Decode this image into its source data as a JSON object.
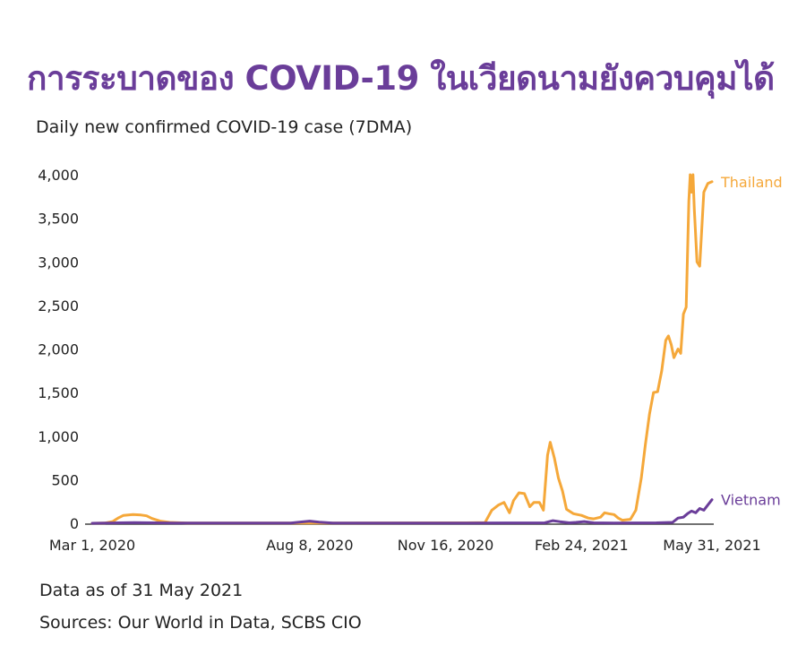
{
  "header": {
    "title": "การระบาดของ COVID-19 ในเวียดนามยังควบคุมได้",
    "subtitle": "Daily new confirmed COVID-19 case (7DMA)"
  },
  "footer": {
    "data_note": "Data as of 31 May 2021",
    "sources": "Sources: Our World in Data, SCBS CIO"
  },
  "chart_data": {
    "type": "line",
    "ylim": [
      0,
      4000
    ],
    "y_ticks": [
      0,
      500,
      1000,
      1500,
      2000,
      2500,
      3000,
      3500,
      4000
    ],
    "y_tick_labels": [
      "0",
      "500",
      "1,000",
      "1,500",
      "2,000",
      "2,500",
      "3,000",
      "3,500",
      "4,000"
    ],
    "x_start": "2020-03-01",
    "x_end": "2021-05-31",
    "x_tick_labels": [
      {
        "date": "2020-03-01",
        "label": "Mar 1, 2020"
      },
      {
        "date": "2020-08-08",
        "label": "Aug 8, 2020"
      },
      {
        "date": "2020-11-16",
        "label": "Nov 16, 2020"
      },
      {
        "date": "2021-02-24",
        "label": "Feb 24, 2021"
      },
      {
        "date": "2021-05-31",
        "label": "May 31, 2021"
      }
    ],
    "grid": false,
    "legend": "labels at line ends",
    "series": [
      {
        "name": "Thailand",
        "color": "#f5a83a",
        "points": [
          [
            "2020-03-01",
            0
          ],
          [
            "2020-03-10",
            2
          ],
          [
            "2020-03-16",
            20
          ],
          [
            "2020-03-20",
            60
          ],
          [
            "2020-03-24",
            90
          ],
          [
            "2020-03-31",
            100
          ],
          [
            "2020-04-06",
            95
          ],
          [
            "2020-04-10",
            85
          ],
          [
            "2020-04-14",
            55
          ],
          [
            "2020-04-20",
            25
          ],
          [
            "2020-04-27",
            10
          ],
          [
            "2020-05-10",
            3
          ],
          [
            "2020-06-01",
            2
          ],
          [
            "2020-09-01",
            3
          ],
          [
            "2020-12-01",
            5
          ],
          [
            "2020-12-15",
            8
          ],
          [
            "2020-12-20",
            150
          ],
          [
            "2020-12-25",
            210
          ],
          [
            "2020-12-29",
            240
          ],
          [
            "2021-01-02",
            120
          ],
          [
            "2021-01-05",
            260
          ],
          [
            "2021-01-09",
            350
          ],
          [
            "2021-01-13",
            340
          ],
          [
            "2021-01-17",
            190
          ],
          [
            "2021-01-20",
            240
          ],
          [
            "2021-01-24",
            240
          ],
          [
            "2021-01-27",
            150
          ],
          [
            "2021-01-30",
            780
          ],
          [
            "2021-02-01",
            930
          ],
          [
            "2021-02-04",
            750
          ],
          [
            "2021-02-07",
            520
          ],
          [
            "2021-02-10",
            370
          ],
          [
            "2021-02-13",
            160
          ],
          [
            "2021-02-18",
            110
          ],
          [
            "2021-02-24",
            90
          ],
          [
            "2021-03-01",
            60
          ],
          [
            "2021-03-05",
            50
          ],
          [
            "2021-03-10",
            70
          ],
          [
            "2021-03-13",
            120
          ],
          [
            "2021-03-16",
            110
          ],
          [
            "2021-03-20",
            100
          ],
          [
            "2021-03-23",
            60
          ],
          [
            "2021-03-26",
            35
          ],
          [
            "2021-03-29",
            40
          ],
          [
            "2021-04-01",
            45
          ],
          [
            "2021-04-05",
            150
          ],
          [
            "2021-04-09",
            520
          ],
          [
            "2021-04-12",
            900
          ],
          [
            "2021-04-15",
            1250
          ],
          [
            "2021-04-18",
            1500
          ],
          [
            "2021-04-21",
            1510
          ],
          [
            "2021-04-24",
            1750
          ],
          [
            "2021-04-27",
            2100
          ],
          [
            "2021-04-29",
            2150
          ],
          [
            "2021-05-01",
            2050
          ],
          [
            "2021-05-03",
            1900
          ],
          [
            "2021-05-06",
            2000
          ],
          [
            "2021-05-08",
            1950
          ],
          [
            "2021-05-10",
            2400
          ],
          [
            "2021-05-12",
            2480
          ],
          [
            "2021-05-14",
            3700
          ],
          [
            "2021-05-15",
            4000
          ],
          [
            "2021-05-16",
            3800
          ],
          [
            "2021-05-17",
            4000
          ],
          [
            "2021-05-18",
            3600
          ],
          [
            "2021-05-20",
            3000
          ],
          [
            "2021-05-22",
            2950
          ],
          [
            "2021-05-25",
            3800
          ],
          [
            "2021-05-28",
            3900
          ],
          [
            "2021-05-31",
            3920
          ]
        ]
      },
      {
        "name": "Vietnam",
        "color": "#6a3d99",
        "points": [
          [
            "2020-03-01",
            0
          ],
          [
            "2020-03-20",
            5
          ],
          [
            "2020-04-01",
            8
          ],
          [
            "2020-05-01",
            2
          ],
          [
            "2020-07-25",
            3
          ],
          [
            "2020-08-02",
            15
          ],
          [
            "2020-08-08",
            25
          ],
          [
            "2020-08-15",
            12
          ],
          [
            "2020-08-25",
            3
          ],
          [
            "2020-12-01",
            2
          ],
          [
            "2021-01-28",
            5
          ],
          [
            "2021-02-03",
            30
          ],
          [
            "2021-02-08",
            18
          ],
          [
            "2021-02-15",
            5
          ],
          [
            "2021-02-20",
            10
          ],
          [
            "2021-02-26",
            20
          ],
          [
            "2021-03-05",
            5
          ],
          [
            "2021-03-20",
            3
          ],
          [
            "2021-04-20",
            5
          ],
          [
            "2021-05-02",
            10
          ],
          [
            "2021-05-06",
            60
          ],
          [
            "2021-05-10",
            70
          ],
          [
            "2021-05-13",
            110
          ],
          [
            "2021-05-16",
            140
          ],
          [
            "2021-05-19",
            120
          ],
          [
            "2021-05-22",
            170
          ],
          [
            "2021-05-25",
            150
          ],
          [
            "2021-05-28",
            210
          ],
          [
            "2021-05-31",
            270
          ]
        ]
      }
    ]
  }
}
